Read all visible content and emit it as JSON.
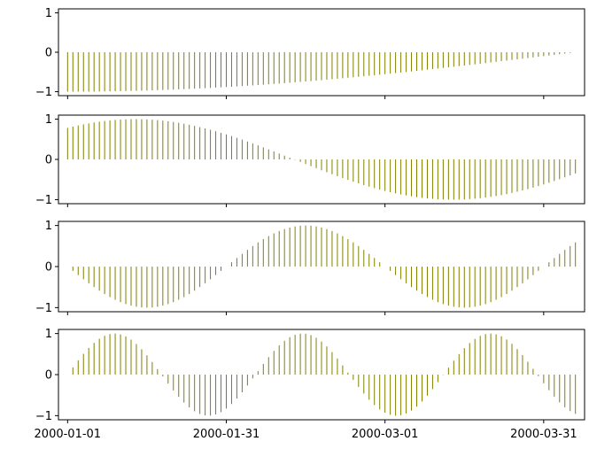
{
  "chart_data": [
    {
      "type": "bar",
      "style": "vlines",
      "color": "#808000",
      "x_start": "2000-01-01",
      "x_end": "2000-04-06",
      "x_step_days": 1,
      "y_function": "sin(2*pi*t/(4*T) - pi/2)",
      "ylim": [
        -1.1,
        1.1
      ],
      "yticks": [
        -1,
        0,
        1
      ],
      "ytick_labels": [
        "−1",
        "0",
        "1"
      ]
    },
    {
      "type": "bar",
      "style": "vlines",
      "color": "#808000",
      "x_start": "2000-01-01",
      "x_end": "2000-04-06",
      "x_step_days": 1,
      "y_function": "sin(2*pi*t/(1.25*T) + 0.9)",
      "ylim": [
        -1.1,
        1.1
      ],
      "yticks": [
        -1,
        0,
        1
      ],
      "ytick_labels": [
        "−1",
        "0",
        "1"
      ]
    },
    {
      "type": "bar",
      "style": "vlines",
      "color": "#808000",
      "x_start": "2000-01-01",
      "x_end": "2000-04-06",
      "x_step_days": 1,
      "y_function": "-sin(2*pi*t/(0.625*T))",
      "ylim": [
        -1.1,
        1.1
      ],
      "yticks": [
        -1,
        0,
        1
      ],
      "ytick_labels": [
        "−1",
        "0",
        "1"
      ]
    },
    {
      "type": "bar",
      "style": "vlines",
      "color": "#808000",
      "x_start": "2000-01-01",
      "x_end": "2000-04-06",
      "x_step_days": 1,
      "y_function": "sin(2*pi*t/(0.37*T))",
      "ylim": [
        -1.1,
        1.1
      ],
      "yticks": [
        -1,
        0,
        1
      ],
      "ytick_labels": [
        "−1",
        "0",
        "1"
      ],
      "xticks": [
        "2000-01-01",
        "2000-01-31",
        "2000-03-01",
        "2000-03-31"
      ]
    }
  ]
}
